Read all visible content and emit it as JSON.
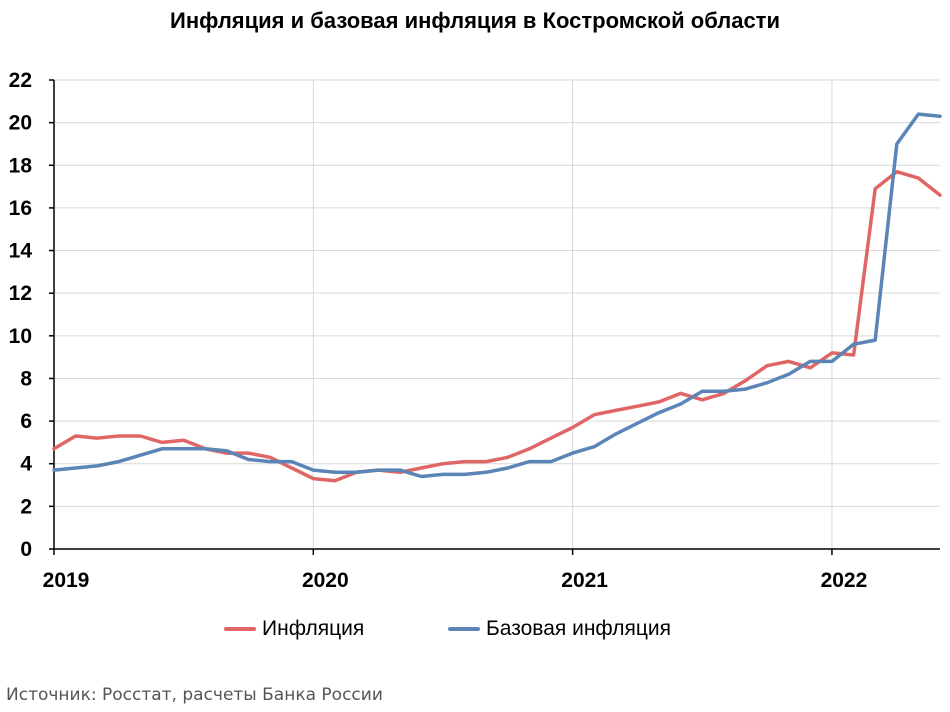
{
  "chart_data": {
    "type": "line",
    "title": "Инфляция и базовая инфляция в Костромской области",
    "xlabel": "",
    "ylabel": "",
    "ylim": [
      0,
      22
    ],
    "yticks": [
      0,
      2,
      4,
      6,
      8,
      10,
      12,
      14,
      16,
      18,
      20,
      22
    ],
    "x_tick_labels": [
      "2019",
      "2020",
      "2021",
      "2022"
    ],
    "x_start": "2019-01",
    "x_end": "2022-06",
    "grid": "vertical at year starts and horizontal at y ticks",
    "legend_position": "bottom",
    "months": [
      "2019-01",
      "2019-02",
      "2019-03",
      "2019-04",
      "2019-05",
      "2019-06",
      "2019-07",
      "2019-08",
      "2019-09",
      "2019-10",
      "2019-11",
      "2019-12",
      "2020-01",
      "2020-02",
      "2020-03",
      "2020-04",
      "2020-05",
      "2020-06",
      "2020-07",
      "2020-08",
      "2020-09",
      "2020-10",
      "2020-11",
      "2020-12",
      "2021-01",
      "2021-02",
      "2021-03",
      "2021-04",
      "2021-05",
      "2021-06",
      "2021-07",
      "2021-08",
      "2021-09",
      "2021-10",
      "2021-11",
      "2021-12",
      "2022-01",
      "2022-02",
      "2022-03",
      "2022-04",
      "2022-05",
      "2022-06"
    ],
    "series": [
      {
        "name": "Инфляция",
        "color": "#e06666",
        "values": [
          4.7,
          5.3,
          5.2,
          5.3,
          5.3,
          5.0,
          5.1,
          4.7,
          4.5,
          4.5,
          4.3,
          3.8,
          3.3,
          3.2,
          3.6,
          3.7,
          3.6,
          3.8,
          4.0,
          4.1,
          4.1,
          4.3,
          4.7,
          5.2,
          5.7,
          6.3,
          6.5,
          6.7,
          6.9,
          7.3,
          7.0,
          7.3,
          7.9,
          8.6,
          8.8,
          8.5,
          9.2,
          9.1,
          16.9,
          17.7,
          17.4,
          16.6
        ]
      },
      {
        "name": "Базовая инфляция",
        "color": "#5b85b7",
        "values": [
          3.7,
          3.8,
          3.9,
          4.1,
          4.4,
          4.7,
          4.7,
          4.7,
          4.6,
          4.2,
          4.1,
          4.1,
          3.7,
          3.6,
          3.6,
          3.7,
          3.7,
          3.4,
          3.5,
          3.5,
          3.6,
          3.8,
          4.1,
          4.1,
          4.5,
          4.8,
          5.4,
          5.9,
          6.4,
          6.8,
          7.4,
          7.4,
          7.5,
          7.8,
          8.2,
          8.8,
          8.8,
          9.6,
          9.8,
          19.0,
          20.4,
          20.3
        ]
      }
    ]
  },
  "source_note": "Источник: Росстат, расчеты Банка России"
}
